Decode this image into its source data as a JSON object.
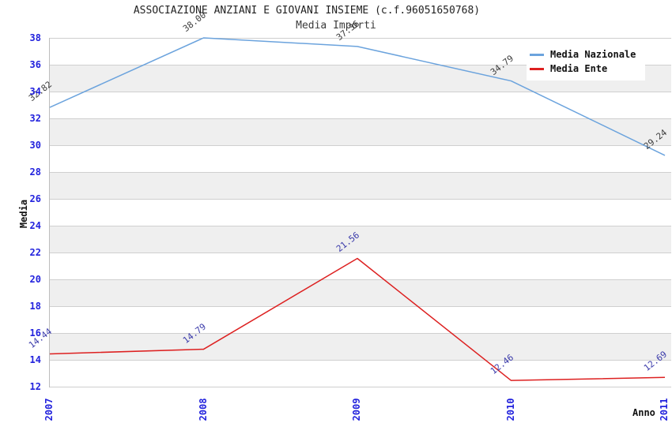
{
  "chart_data": {
    "type": "line",
    "title": "ASSOCIAZIONE ANZIANI E GIOVANI INSIEME (c.f.96051650768)",
    "subtitle": "Media Importi",
    "xlabel": "Anno",
    "ylabel": "Media",
    "categories": [
      "2007",
      "2008",
      "2009",
      "2010",
      "2011"
    ],
    "ylim": [
      12,
      38
    ],
    "y_tick_step": 2,
    "y_ticks": [
      "12",
      "14",
      "16",
      "18",
      "20",
      "22",
      "24",
      "26",
      "28",
      "30",
      "32",
      "34",
      "36",
      "38"
    ],
    "grid": "horizontal-alternating-bands",
    "legend_position": "top-right",
    "series": [
      {
        "name": "Media Nazionale",
        "color": "#6ba3dd",
        "label_color": "#3d3d3d",
        "values": [
          32.82,
          38.0,
          37.36,
          34.79,
          29.24
        ],
        "point_labels": [
          "32.82",
          "38.00",
          "37.36",
          "34.79",
          "29.24"
        ]
      },
      {
        "name": "Media Ente",
        "color": "#dd2020",
        "label_color": "#3a3aaa",
        "values": [
          14.44,
          14.79,
          21.56,
          12.46,
          12.69
        ],
        "point_labels": [
          "14.44",
          "14.79",
          "21.56",
          "12.46",
          "12.69"
        ]
      }
    ],
    "colors": {
      "tick_label": "#2222dd",
      "band": "#efefef",
      "gridline": "#cfcfcf",
      "axis_line": "#bdbdbd",
      "background": "#ffffff",
      "legend_background": "#ffffff"
    }
  }
}
